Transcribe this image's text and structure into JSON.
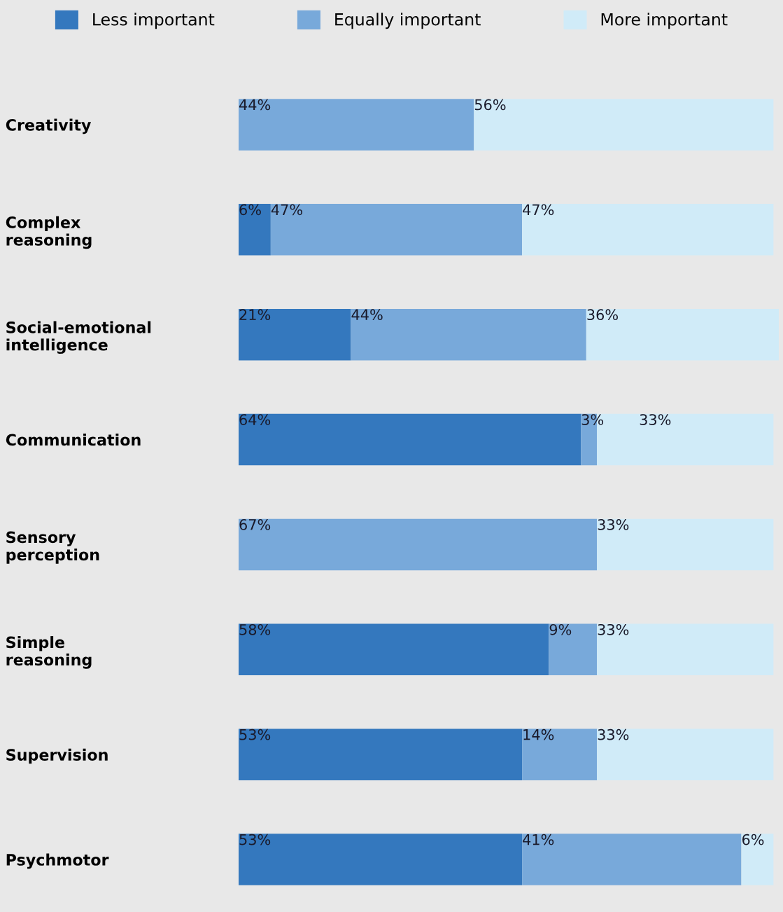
{
  "chart_data": {
    "type": "bar",
    "orientation": "horizontal",
    "stacked": true,
    "legend": "top",
    "grid": false,
    "categories": [
      "Creativity",
      "Complex\nreasoning",
      "Social-emotional\nintelligence",
      "Communication",
      "Sensory\nperception",
      "Simple\nreasoning",
      "Supervision",
      "Psychmotor"
    ],
    "series": [
      {
        "name": "Less important",
        "color": "#3478be",
        "values": [
          0,
          6,
          21,
          64,
          0,
          58,
          53,
          53
        ],
        "value_labels": [
          null,
          "6%",
          "21%",
          "64%",
          null,
          "58%",
          "53%",
          "53%"
        ]
      },
      {
        "name": "Equally important",
        "color": "#78a9da",
        "values": [
          44,
          47,
          44,
          3,
          67,
          9,
          14,
          41
        ],
        "value_labels": [
          "44%",
          "47%",
          "44%",
          "3%",
          "67%",
          "9%",
          "14%",
          "41%"
        ]
      },
      {
        "name": "More important",
        "color": "#d0ebf8",
        "values": [
          56,
          47,
          36,
          33,
          33,
          33,
          33,
          6
        ],
        "value_labels": [
          "56%",
          "47%",
          "36%",
          "33%",
          "33%",
          "33%",
          "33%",
          "6%"
        ]
      }
    ]
  }
}
